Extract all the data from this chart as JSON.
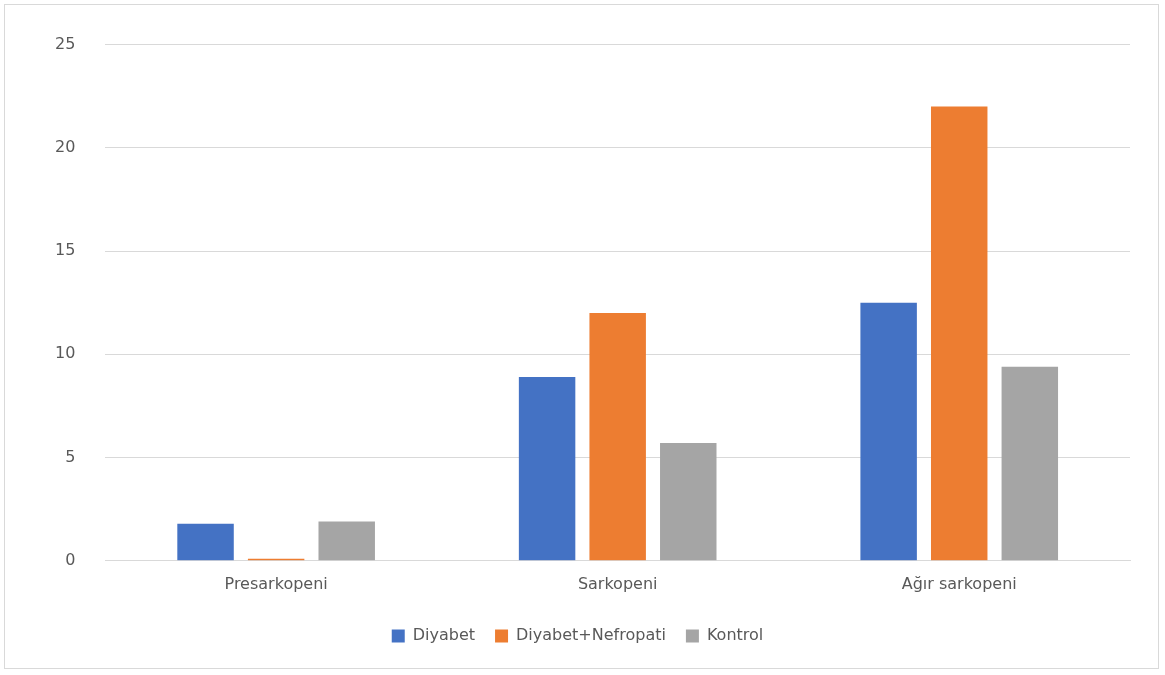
{
  "chart_data": {
    "type": "bar",
    "categories": [
      "Presarkopeni",
      "Sarkopeni",
      "Ağır sarkopeni"
    ],
    "series": [
      {
        "name": "Diyabet",
        "color": "#4472c4",
        "values": [
          1.8,
          8.9,
          12.5
        ]
      },
      {
        "name": "Diyabet+Nefropati",
        "color": "#ed7d31",
        "values": [
          0.1,
          12,
          22
        ]
      },
      {
        "name": "Kontrol",
        "color": "#a5a5a5",
        "values": [
          1.9,
          5.7,
          9.4
        ]
      }
    ],
    "ylim": [
      0,
      25
    ],
    "yticks": [
      0,
      5,
      10,
      15,
      20,
      25
    ],
    "grid": "y",
    "legend": "bottom"
  }
}
